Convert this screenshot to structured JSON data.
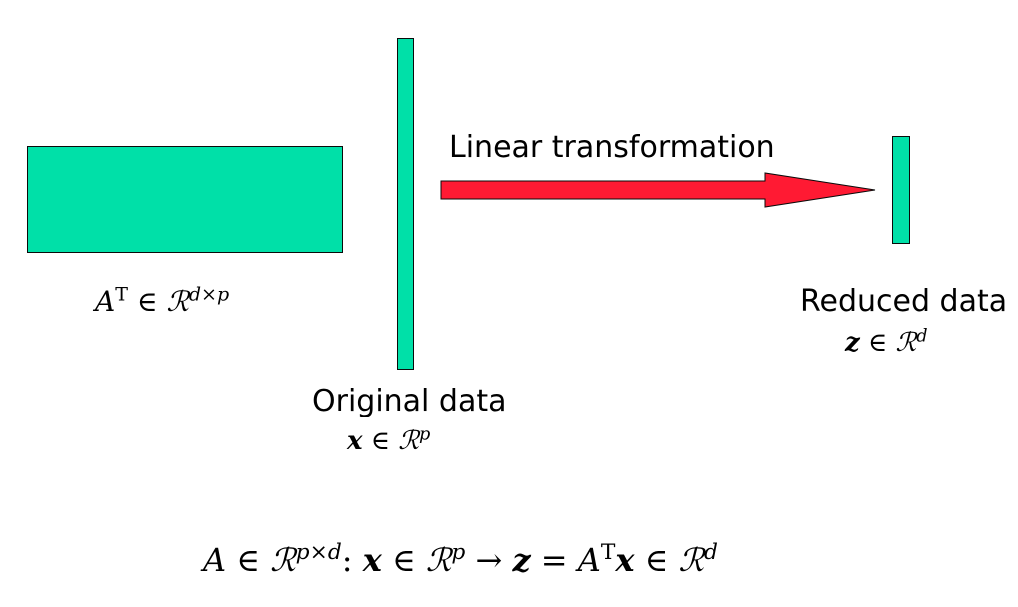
{
  "colors": {
    "block_fill": "#00e0a8",
    "arrow_fill": "#ff1a33",
    "outline": "#0a0a0a"
  },
  "labels": {
    "transformation": "Linear transformation",
    "original": "Original data",
    "reduced": "Reduced data"
  },
  "math": {
    "matrix": {
      "symbol": "A",
      "sup": "T",
      "in": "∈",
      "space": "ℛ",
      "dims": "d×p"
    },
    "original": {
      "var": "x",
      "in": "∈",
      "space": "ℛ",
      "dim": "p"
    },
    "reduced": {
      "var": "z",
      "in": "∈",
      "space": "ℛ",
      "dim": "d"
    },
    "map": {
      "symbol": "A",
      "in1": "∈",
      "space1": "ℛ",
      "dims": "p×d",
      "colon": ":",
      "x": "x",
      "in2": "∈",
      "space2": "ℛ",
      "dim_x": "p",
      "arrow": "→",
      "z": "z",
      "eq": "=",
      "a": "A",
      "t": "T",
      "x2": "x",
      "in3": "∈",
      "space3": "ℛ",
      "dim_z": "d"
    }
  }
}
